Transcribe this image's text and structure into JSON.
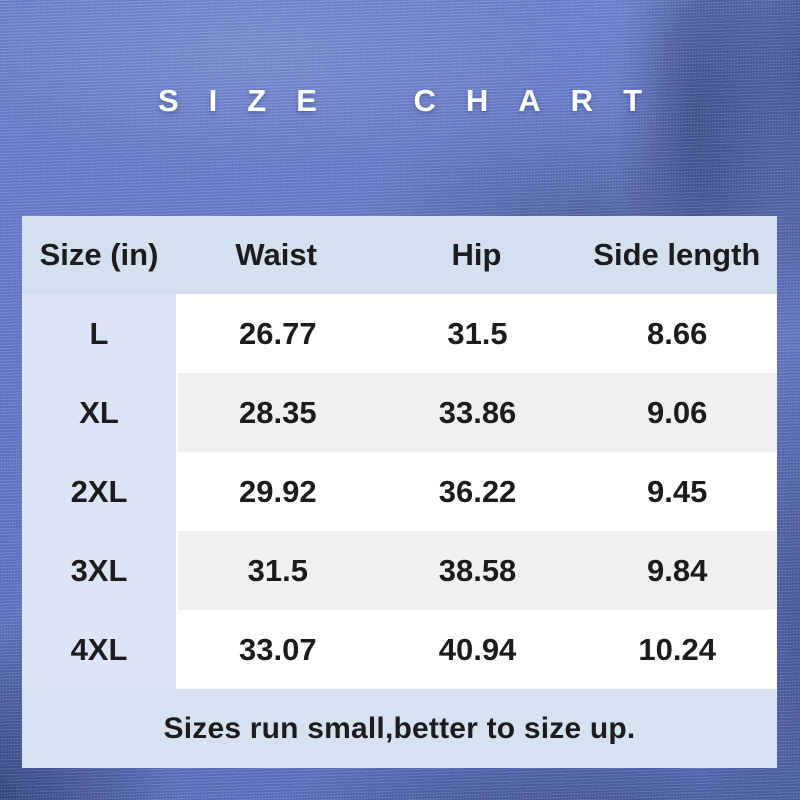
{
  "title": "SIZE CHART",
  "chart_data": {
    "type": "table",
    "title": "SIZE CHART",
    "columns": [
      "Size (in)",
      "Waist",
      "Hip",
      "Side length"
    ],
    "rows": [
      {
        "size": "L",
        "waist": 26.77,
        "hip": 31.5,
        "side_length": 8.66
      },
      {
        "size": "XL",
        "waist": 28.35,
        "hip": 33.86,
        "side_length": 9.06
      },
      {
        "size": "2XL",
        "waist": 29.92,
        "hip": 36.22,
        "side_length": 9.45
      },
      {
        "size": "3XL",
        "waist": 31.5,
        "hip": 38.58,
        "side_length": 9.84
      },
      {
        "size": "4XL",
        "waist": 33.07,
        "hip": 40.94,
        "side_length": 10.24
      }
    ],
    "note": "Sizes run small,better to size up."
  },
  "colors": {
    "fabric_blue": "#6479c7",
    "header_bg": "#d4e0ee",
    "size_column_bg": "#dde4f5",
    "row_bg": "#ffffff",
    "row_alt_bg": "#f0f0f1",
    "footer_bg": "#d7e2f0",
    "title_color": "#ffffff",
    "text_color": "#1c1c1e"
  }
}
